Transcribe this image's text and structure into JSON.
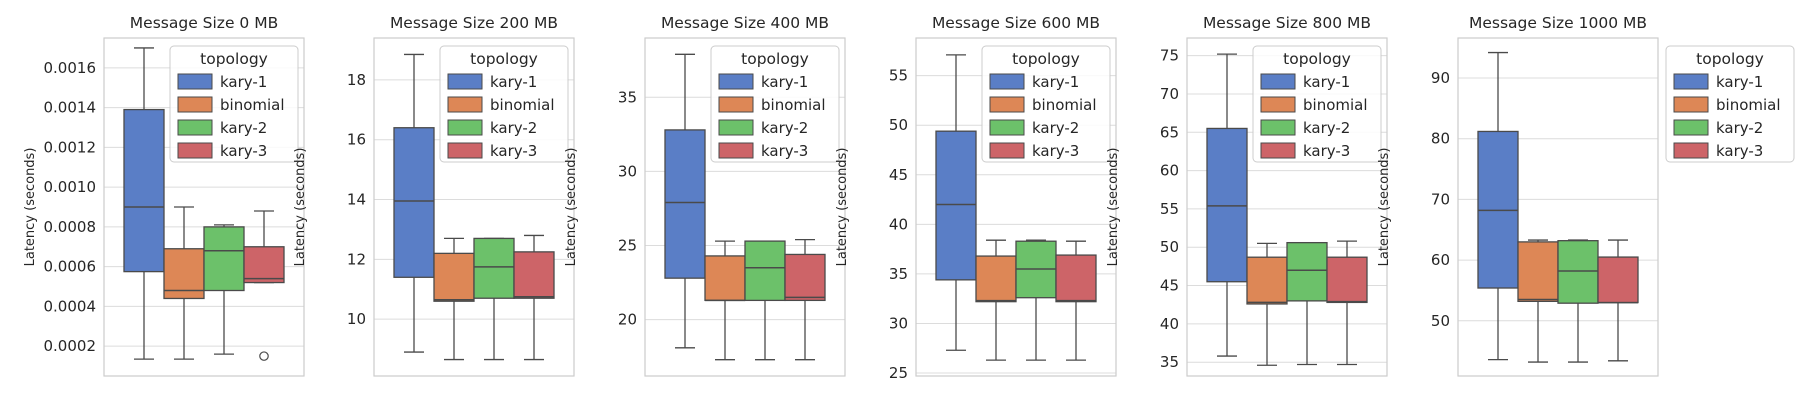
{
  "legend_title": "topology",
  "colors": {
    "kary-1": "#5a7ec6",
    "binomial": "#dd8756",
    "kary-2": "#6cc16a",
    "kary-3": "#cd6468",
    "grid": "#dcdcdc",
    "frame": "#cccccc",
    "whisker": "#4a4a4a"
  },
  "chart_data": [
    {
      "type": "box",
      "title": "Message Size 0 MB",
      "ylabel": "Latency (seconds)",
      "ylim": [
        5e-05,
        0.00175
      ],
      "yticks": [
        0.0002,
        0.0004,
        0.0006,
        0.0008,
        0.001,
        0.0012,
        0.0014,
        0.0016
      ],
      "ytick_labels": [
        "0.0002",
        "0.0004",
        "0.0006",
        "0.0008",
        "0.0010",
        "0.0012",
        "0.0014",
        "0.0016"
      ],
      "legend": {
        "title": "topology",
        "entries": [
          "kary-1",
          "binomial",
          "kary-2",
          "kary-3"
        ],
        "position": "upper-right"
      },
      "series": [
        {
          "name": "kary-1",
          "whislo": 0.000135,
          "q1": 0.000575,
          "med": 0.0009,
          "q3": 0.00139,
          "whishi": 0.0017,
          "fliers": []
        },
        {
          "name": "binomial",
          "whislo": 0.000135,
          "q1": 0.00044,
          "med": 0.00048,
          "q3": 0.00069,
          "whishi": 0.0009,
          "fliers": []
        },
        {
          "name": "kary-2",
          "whislo": 0.00016,
          "q1": 0.00048,
          "med": 0.00068,
          "q3": 0.0008,
          "whishi": 0.00081,
          "fliers": []
        },
        {
          "name": "kary-3",
          "whislo": 0.00052,
          "q1": 0.00052,
          "med": 0.00054,
          "q3": 0.0007,
          "whishi": 0.00088,
          "fliers": [
            0.00015
          ]
        }
      ]
    },
    {
      "type": "box",
      "title": "Message Size 200 MB",
      "ylabel": "Latency (seconds)",
      "ylim": [
        8.1,
        19.4
      ],
      "yticks": [
        10,
        12,
        14,
        16,
        18
      ],
      "ytick_labels": [
        "10",
        "12",
        "14",
        "16",
        "18"
      ],
      "legend": {
        "title": "topology",
        "entries": [
          "kary-1",
          "binomial",
          "kary-2",
          "kary-3"
        ],
        "position": "upper-right"
      },
      "series": [
        {
          "name": "kary-1",
          "whislo": 8.9,
          "q1": 11.4,
          "med": 13.95,
          "q3": 16.4,
          "whishi": 18.85,
          "fliers": []
        },
        {
          "name": "binomial",
          "whislo": 8.65,
          "q1": 10.6,
          "med": 10.65,
          "q3": 12.2,
          "whishi": 12.7,
          "fliers": []
        },
        {
          "name": "kary-2",
          "whislo": 8.65,
          "q1": 10.7,
          "med": 11.75,
          "q3": 12.7,
          "whishi": 12.7,
          "fliers": []
        },
        {
          "name": "kary-3",
          "whislo": 8.65,
          "q1": 10.7,
          "med": 10.75,
          "q3": 12.25,
          "whishi": 12.8,
          "fliers": []
        }
      ]
    },
    {
      "type": "box",
      "title": "Message Size 400 MB",
      "ylabel": "Latency (seconds)",
      "ylim": [
        16.2,
        39.0
      ],
      "yticks": [
        20,
        25,
        30,
        35
      ],
      "ytick_labels": [
        "20",
        "25",
        "30",
        "35"
      ],
      "legend": {
        "title": "topology",
        "entries": [
          "kary-1",
          "binomial",
          "kary-2",
          "kary-3"
        ],
        "position": "upper-right"
      },
      "series": [
        {
          "name": "kary-1",
          "whislo": 18.1,
          "q1": 22.8,
          "med": 27.9,
          "q3": 32.8,
          "whishi": 37.9,
          "fliers": []
        },
        {
          "name": "binomial",
          "whislo": 17.3,
          "q1": 21.3,
          "med": 21.3,
          "q3": 24.3,
          "whishi": 25.3,
          "fliers": []
        },
        {
          "name": "kary-2",
          "whislo": 17.3,
          "q1": 21.3,
          "med": 23.5,
          "q3": 25.3,
          "whishi": 25.3,
          "fliers": []
        },
        {
          "name": "kary-3",
          "whislo": 17.3,
          "q1": 21.3,
          "med": 21.5,
          "q3": 24.4,
          "whishi": 25.4,
          "fliers": []
        }
      ]
    },
    {
      "type": "box",
      "title": "Message Size 600 MB",
      "ylabel": "Latency (seconds)",
      "ylim": [
        24.7,
        58.8
      ],
      "yticks": [
        25,
        30,
        35,
        40,
        45,
        50,
        55
      ],
      "ytick_labels": [
        "25",
        "30",
        "35",
        "40",
        "45",
        "50",
        "55"
      ],
      "legend": {
        "title": "topology",
        "entries": [
          "kary-1",
          "binomial",
          "kary-2",
          "kary-3"
        ],
        "position": "upper-right"
      },
      "series": [
        {
          "name": "kary-1",
          "whislo": 27.3,
          "q1": 34.4,
          "med": 42.0,
          "q3": 49.4,
          "whishi": 57.1,
          "fliers": []
        },
        {
          "name": "binomial",
          "whislo": 26.3,
          "q1": 32.2,
          "med": 32.3,
          "q3": 36.8,
          "whishi": 38.4,
          "fliers": []
        },
        {
          "name": "kary-2",
          "whislo": 26.3,
          "q1": 32.6,
          "med": 35.5,
          "q3": 38.3,
          "whishi": 38.4,
          "fliers": []
        },
        {
          "name": "kary-3",
          "whislo": 26.3,
          "q1": 32.2,
          "med": 32.3,
          "q3": 36.9,
          "whishi": 38.3,
          "fliers": []
        }
      ]
    },
    {
      "type": "box",
      "title": "Message Size 800 MB",
      "ylabel": "Latency (seconds)",
      "ylim": [
        33.2,
        77.3
      ],
      "yticks": [
        35,
        40,
        45,
        50,
        55,
        60,
        65,
        70,
        75
      ],
      "ytick_labels": [
        "35",
        "40",
        "45",
        "50",
        "55",
        "60",
        "65",
        "70",
        "75"
      ],
      "legend": {
        "title": "topology",
        "entries": [
          "kary-1",
          "binomial",
          "kary-2",
          "kary-3"
        ],
        "position": "upper-right"
      },
      "series": [
        {
          "name": "kary-1",
          "whislo": 35.8,
          "q1": 45.5,
          "med": 55.4,
          "q3": 65.5,
          "whishi": 75.2,
          "fliers": []
        },
        {
          "name": "binomial",
          "whislo": 34.6,
          "q1": 42.6,
          "med": 42.8,
          "q3": 48.7,
          "whishi": 50.5,
          "fliers": []
        },
        {
          "name": "kary-2",
          "whislo": 34.7,
          "q1": 43.0,
          "med": 47.0,
          "q3": 50.6,
          "whishi": 50.6,
          "fliers": []
        },
        {
          "name": "kary-3",
          "whislo": 34.7,
          "q1": 42.8,
          "med": 42.9,
          "q3": 48.7,
          "whishi": 50.8,
          "fliers": []
        }
      ]
    },
    {
      "type": "box",
      "title": "Message Size 1000 MB",
      "ylabel": "Latency (seconds)",
      "ylim": [
        40.9,
        96.6
      ],
      "yticks": [
        50,
        60,
        70,
        80,
        90
      ],
      "ytick_labels": [
        "50",
        "60",
        "70",
        "80",
        "90"
      ],
      "legend": {
        "title": "topology",
        "entries": [
          "kary-1",
          "binomial",
          "kary-2",
          "kary-3"
        ],
        "position": "outside-right"
      },
      "series": [
        {
          "name": "kary-1",
          "whislo": 43.6,
          "q1": 55.4,
          "med": 68.2,
          "q3": 81.2,
          "whishi": 94.2,
          "fliers": []
        },
        {
          "name": "binomial",
          "whislo": 43.2,
          "q1": 53.2,
          "med": 53.5,
          "q3": 63.0,
          "whishi": 63.3,
          "fliers": []
        },
        {
          "name": "kary-2",
          "whislo": 43.2,
          "q1": 52.9,
          "med": 58.2,
          "q3": 63.2,
          "whishi": 63.3,
          "fliers": []
        },
        {
          "name": "kary-3",
          "whislo": 43.4,
          "q1": 53.0,
          "med": 53.0,
          "q3": 60.5,
          "whishi": 63.3,
          "fliers": []
        }
      ]
    }
  ]
}
